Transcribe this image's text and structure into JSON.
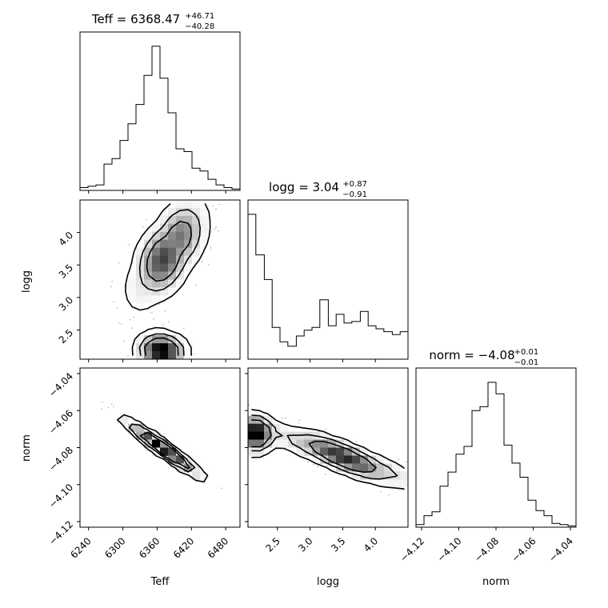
{
  "chart_data": [
    {
      "type": "histogram",
      "panel": "Teff",
      "title_prefix": "Teff = 6368.47",
      "title_sup": "+46.71",
      "title_sub": "−40.28",
      "xlim": [
        6225,
        6505
      ],
      "xticks": [
        6240,
        6300,
        6360,
        6420,
        6480
      ],
      "bin_edges": [
        6225,
        6239,
        6253,
        6267,
        6281,
        6295,
        6309,
        6323,
        6337,
        6351,
        6365,
        6379,
        6393,
        6407,
        6421,
        6435,
        6449,
        6463,
        6477,
        6491,
        6505
      ],
      "counts": [
        2,
        3,
        4,
        19,
        23,
        36,
        48,
        62,
        83,
        104,
        81,
        56,
        30,
        28,
        16,
        14,
        8,
        4,
        2,
        1
      ]
    },
    {
      "type": "histogram",
      "panel": "logg",
      "title_prefix": "logg = 3.04",
      "title_sup": "+0.87",
      "title_sub": "−0.91",
      "xlim": [
        2.05,
        4.5
      ],
      "xticks": [
        2.5,
        3.0,
        3.5,
        4.0
      ],
      "xtick_labels": [
        "2.5",
        "3.0",
        "3.5",
        "4.0"
      ],
      "bin_edges": [
        2.05,
        2.17,
        2.3,
        2.42,
        2.54,
        2.66,
        2.79,
        2.91,
        3.03,
        3.15,
        3.28,
        3.4,
        3.52,
        3.64,
        3.77,
        3.89,
        4.01,
        4.13,
        4.26,
        4.38,
        4.5
      ],
      "counts": [
        100,
        72,
        55,
        22,
        12,
        9,
        16,
        20,
        22,
        41,
        23,
        31,
        25,
        26,
        33,
        23,
        21,
        19,
        17,
        19
      ]
    },
    {
      "type": "histogram",
      "panel": "norm",
      "title_prefix": "norm = −4.08",
      "title_sup": "+0.01",
      "title_sub": "−0.01",
      "xlim": [
        -4.123,
        -4.037
      ],
      "xticks": [
        -4.12,
        -4.1,
        -4.08,
        -4.06,
        -4.04
      ],
      "xtick_labels": [
        "−4.12",
        "−4.10",
        "−4.08",
        "−4.06",
        "−4.04"
      ],
      "bin_edges": [
        -4.123,
        -4.1187,
        -4.1144,
        -4.1101,
        -4.1058,
        -4.1015,
        -4.0972,
        -4.0929,
        -4.0886,
        -4.0843,
        -4.08,
        -4.0757,
        -4.0714,
        -4.0671,
        -4.0628,
        -4.0585,
        -4.0542,
        -4.0499,
        -4.0456,
        -4.0413,
        -4.037
      ],
      "counts": [
        2,
        9,
        12,
        32,
        43,
        57,
        63,
        91,
        94,
        113,
        104,
        64,
        50,
        39,
        21,
        13,
        9,
        3,
        2,
        1
      ]
    },
    {
      "type": "contour",
      "panel": "logg vs Teff",
      "xlim": [
        6225,
        6505
      ],
      "ylim": [
        2.05,
        4.5
      ],
      "yticks": [
        2.5,
        3.0,
        3.5,
        4.0
      ],
      "ytick_labels": [
        "2.5",
        "3.0",
        "3.5",
        "4.0"
      ],
      "ylabel": "logg",
      "modes": [
        {
          "x": 6368,
          "y": 2.18,
          "sx": 26,
          "sy": 0.16,
          "w": 0.55
        },
        {
          "x": 6380,
          "y": 3.7,
          "sx": 38,
          "sy": 0.45,
          "rho": 0.6,
          "w": 0.45
        }
      ]
    },
    {
      "type": "contour",
      "panel": "norm vs Teff",
      "xlim": [
        6225,
        6505
      ],
      "ylim": [
        -4.123,
        -4.037
      ],
      "yticks": [
        -4.12,
        -4.1,
        -4.08,
        -4.06,
        -4.04
      ],
      "ytick_labels": [
        "−4.12",
        "−4.10",
        "−4.08",
        "−4.06",
        "−4.04"
      ],
      "xlabel": "Teff",
      "xtick_labels": [
        "6240",
        "6300",
        "6360",
        "6420",
        "6480"
      ],
      "ylabel": "norm",
      "modes": [
        {
          "x": 6368,
          "y": -4.08,
          "sx": 42,
          "sy": 0.0095,
          "rho": -0.96,
          "w": 1.0
        }
      ]
    },
    {
      "type": "contour",
      "panel": "norm vs logg",
      "xlim": [
        2.05,
        4.5
      ],
      "ylim": [
        -4.123,
        -4.037
      ],
      "xlabel": "logg",
      "modes": [
        {
          "x": 2.15,
          "y": -4.073,
          "sx": 0.16,
          "sy": 0.006,
          "w": 0.55
        },
        {
          "x": 3.5,
          "y": -4.085,
          "sx": 0.6,
          "sy": 0.009,
          "rho": -0.85,
          "w": 0.45
        }
      ]
    },
    {
      "type": "axis",
      "panel": "norm x-axis",
      "xlabel": "norm"
    }
  ]
}
